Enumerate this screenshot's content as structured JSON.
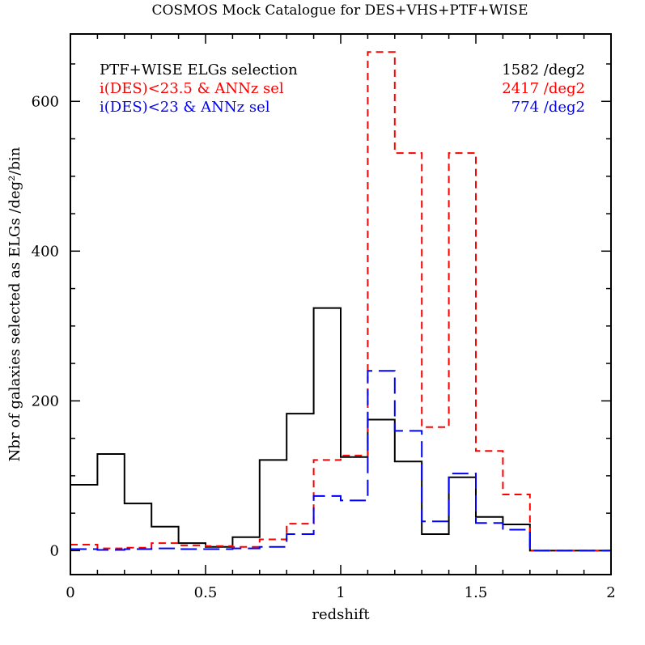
{
  "chart_data": {
    "type": "line",
    "style": "step histogram",
    "title": "COSMOS Mock Catalogue for DES+VHS+PTF+WISE",
    "xlabel": "redshift",
    "ylabel": "Nbr of galaxies selected as ELGs /deg²/bin",
    "xlim": [
      0,
      2
    ],
    "ylim": [
      -32,
      690
    ],
    "x_ticks": [
      0,
      0.5,
      1,
      1.5,
      2
    ],
    "x_tick_labels": [
      "0",
      "0.5",
      "1",
      "1.5",
      "2"
    ],
    "y_ticks": [
      0,
      200,
      400,
      600
    ],
    "y_tick_labels": [
      "0",
      "200",
      "400",
      "600"
    ],
    "bin_edges": [
      0,
      0.1,
      0.2,
      0.3,
      0.4,
      0.5,
      0.6,
      0.7,
      0.8,
      0.9,
      1.0,
      1.1,
      1.2,
      1.3,
      1.4,
      1.5,
      1.6,
      1.7,
      1.8,
      1.9,
      2.0
    ],
    "grid": false,
    "legend_position": "top",
    "series": [
      {
        "name": "PTF+WISE ELGs selection",
        "density": "1582 /deg2",
        "color": "#000000",
        "dash": "solid",
        "values": [
          88,
          129,
          63,
          32,
          10,
          5,
          18,
          121,
          183,
          324,
          125,
          175,
          119,
          22,
          98,
          45,
          35,
          0,
          0,
          0
        ]
      },
      {
        "name": "i(DES)<23.5 & ANNz sel",
        "density": "2417 /deg2",
        "color": "#ff0000",
        "dash": "short",
        "values": [
          8,
          3,
          4,
          10,
          7,
          6,
          5,
          15,
          36,
          121,
          127,
          666,
          531,
          165,
          531,
          133,
          75,
          0,
          0,
          0
        ]
      },
      {
        "name": "i(DES)<23 & ANNz sel",
        "density": "774 /deg2",
        "color": "#0000ff",
        "dash": "long",
        "values": [
          2,
          1,
          2,
          3,
          2,
          2,
          3,
          5,
          22,
          73,
          67,
          240,
          160,
          39,
          103,
          37,
          28,
          0,
          0,
          0
        ]
      }
    ]
  }
}
